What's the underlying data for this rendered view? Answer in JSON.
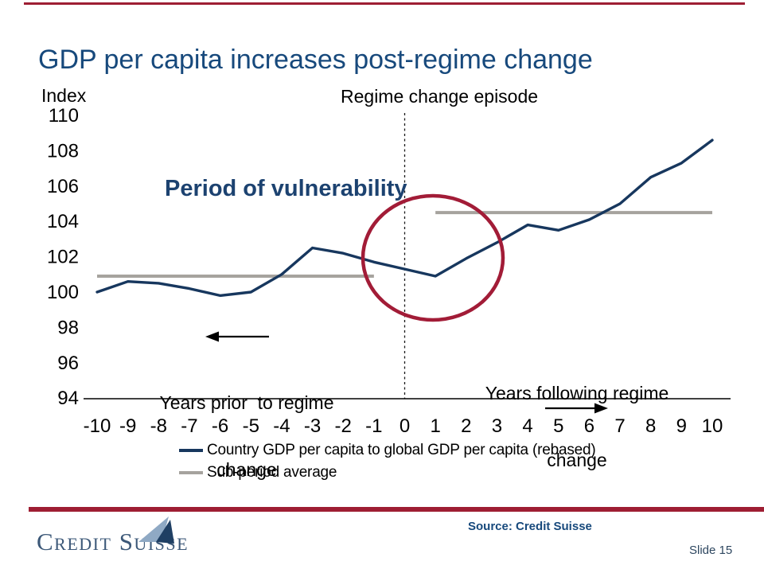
{
  "slide": {
    "title": "GDP per capita increases post-regime change",
    "footer": {
      "logo_text": "Credit Suisse",
      "source": "Source: Credit Suisse",
      "slide_number": "Slide 15"
    }
  },
  "colors": {
    "navy_line": "#17375E",
    "title_navy": "#17497C",
    "gray_line": "#A6A39E",
    "red_rule": "#9E1E33",
    "circle_red": "#A21C37",
    "axis_black": "#000000"
  },
  "chart_data": {
    "type": "line",
    "index_label": "Index",
    "x": [
      -10,
      -9,
      -8,
      -7,
      -6,
      -5,
      -4,
      -3,
      -2,
      -1,
      0,
      1,
      2,
      3,
      4,
      5,
      6,
      7,
      8,
      9,
      10
    ],
    "xlim": [
      -10,
      10
    ],
    "ylim": [
      94,
      110
    ],
    "yticks": [
      110,
      108,
      106,
      104,
      102,
      100,
      98,
      96,
      94
    ],
    "grid": "off",
    "series": [
      {
        "name": "Country GDP per capita to global GDP per capita (rebased)",
        "values": [
          100.0,
          100.6,
          100.5,
          100.2,
          99.8,
          100.0,
          101.0,
          102.5,
          102.2,
          101.7,
          101.3,
          100.9,
          101.9,
          102.8,
          103.8,
          103.5,
          104.1,
          105.0,
          106.5,
          107.3,
          108.6
        ]
      }
    ],
    "sub_period_average": {
      "name": "Sub-period average",
      "segments": [
        {
          "from": -10,
          "to": -1,
          "value": 100.9
        },
        {
          "from": 1,
          "to": 10,
          "value": 104.5
        }
      ]
    },
    "annotations": {
      "regime_line_x": 0,
      "regime_line_label": "Regime change episode",
      "period_label": "Period of vulnerability",
      "years_prior_line1": "Years prior  to regime",
      "years_prior_line2": "change",
      "years_following_line1": "Years following regime",
      "years_following_line2": "change"
    },
    "legend": {
      "position": "bottom",
      "entries": [
        "Country GDP per capita to global GDP per capita (rebased)",
        "Sub-period average"
      ]
    }
  }
}
